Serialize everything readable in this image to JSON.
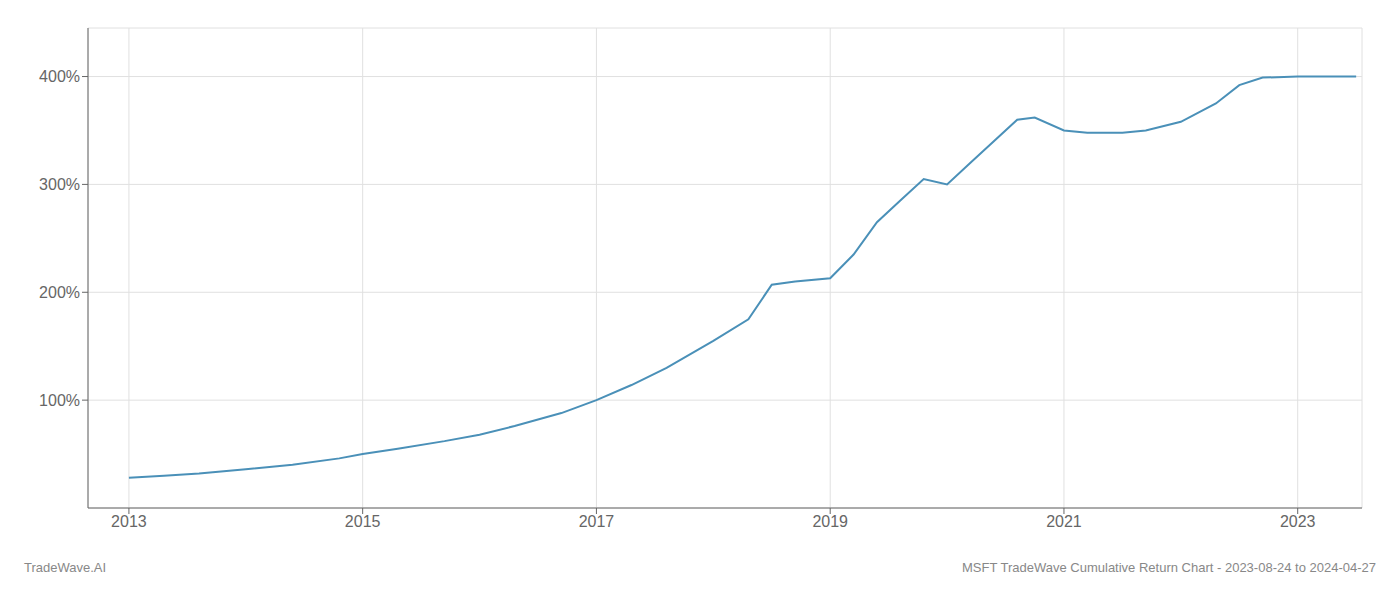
{
  "chart_data": {
    "type": "line",
    "title": "MSFT TradeWave Cumulative Return Chart - 2023-08-24 to 2024-04-27",
    "annotations": [
      "TradeWave.AI"
    ],
    "x": [
      2013.0,
      2013.3,
      2013.6,
      2014.0,
      2014.4,
      2014.8,
      2015.0,
      2015.3,
      2015.7,
      2016.0,
      2016.3,
      2016.7,
      2017.0,
      2017.3,
      2017.6,
      2018.0,
      2018.3,
      2018.5,
      2018.7,
      2019.0,
      2019.2,
      2019.4,
      2019.6,
      2019.8,
      2020.0,
      2020.2,
      2020.4,
      2020.6,
      2020.75,
      2021.0,
      2021.2,
      2021.5,
      2021.7,
      2022.0,
      2022.3,
      2022.5,
      2022.7,
      2023.0,
      2023.15,
      2023.5
    ],
    "values": [
      28,
      30,
      32,
      36,
      40,
      46,
      50,
      55,
      62,
      68,
      76,
      88,
      100,
      114,
      130,
      155,
      175,
      207,
      210,
      213,
      235,
      265,
      285,
      305,
      300,
      320,
      340,
      360,
      362,
      350,
      348,
      348,
      350,
      358,
      375,
      392,
      399,
      400,
      400,
      400
    ],
    "color": "#4a90b8",
    "xlim": [
      2012.65,
      2023.55
    ],
    "xticks": [
      2013,
      2015,
      2017,
      2019,
      2021,
      2023
    ],
    "ylim": [
      0,
      445
    ],
    "yticks": [
      {
        "value": 100,
        "label": "100%"
      },
      {
        "value": 200,
        "label": "200%"
      },
      {
        "value": 300,
        "label": "300%"
      },
      {
        "value": 400,
        "label": "400%"
      }
    ],
    "grid": true
  }
}
